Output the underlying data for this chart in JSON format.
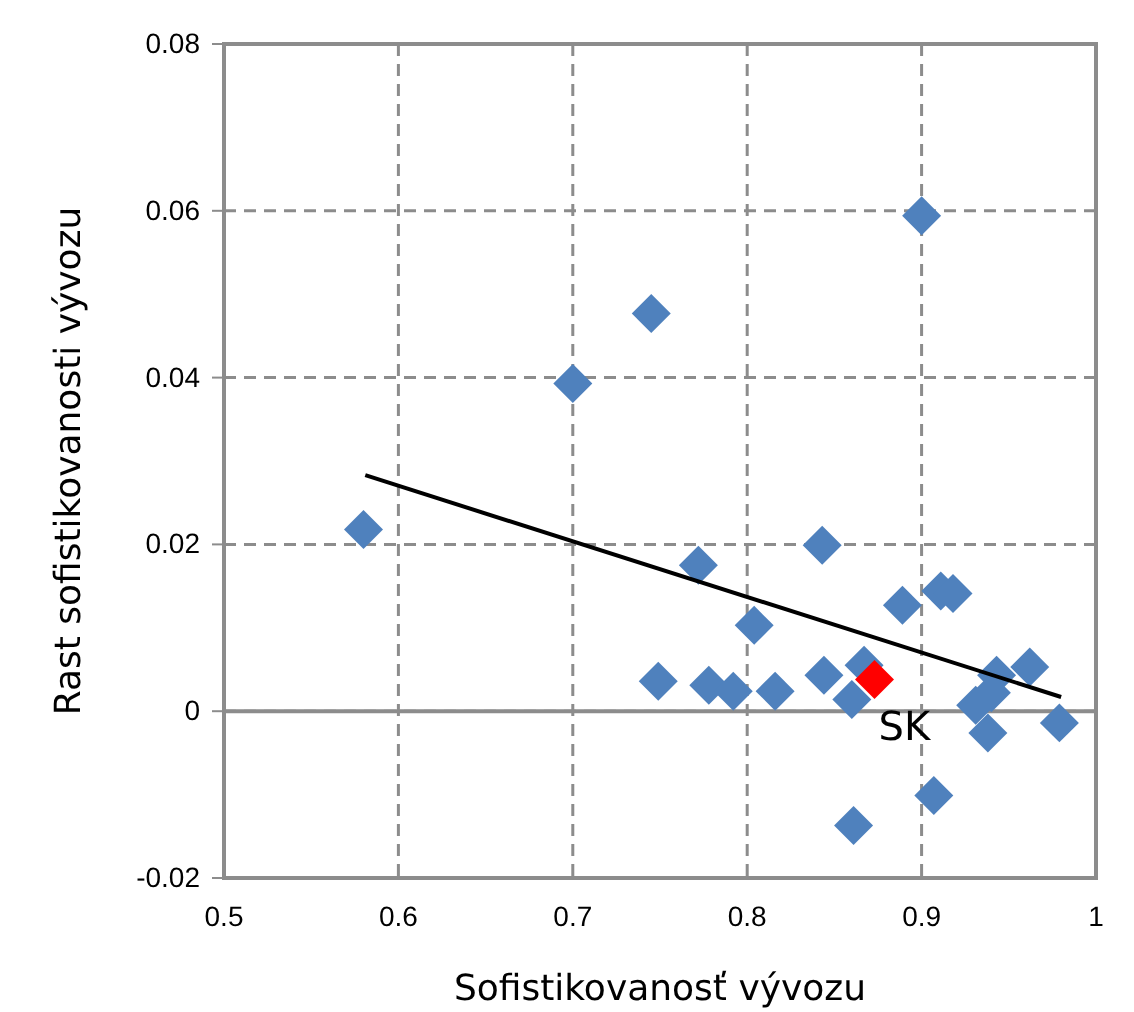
{
  "chart_data": {
    "type": "scatter",
    "xlabel": "Sofistikovanosť vývozu",
    "ylabel": "Rast sofistikovanosti vývozu",
    "xlim": [
      0.5,
      1
    ],
    "xticks": [
      0.5,
      0.6,
      0.7,
      0.8,
      0.9,
      {
        "value": 1,
        "label": "1"
      }
    ],
    "ylim": [
      -0.02,
      0.08
    ],
    "yticks": [
      -0.02,
      {
        "value": 0,
        "label": "0"
      },
      0.02,
      0.04,
      0.06,
      0.08
    ],
    "grid": true,
    "marker": "diamond",
    "annotations": [
      {
        "text": "SK",
        "x": 0.873,
        "y": 0.0038
      }
    ],
    "series": [
      {
        "color": "#4f81bd",
        "x": [
          0.58,
          0.7,
          0.745,
          0.9,
          0.772,
          0.843,
          0.804,
          0.749,
          0.778,
          0.792,
          0.816,
          0.844,
          0.867,
          0.86,
          0.873,
          0.861,
          0.889,
          0.911,
          0.918,
          0.907,
          0.931,
          0.943,
          0.94,
          0.938,
          0.962,
          0.979
        ],
        "values": [
          0.0218,
          0.0393,
          0.0477,
          0.0594,
          0.0175,
          0.0199,
          0.0103,
          0.0036,
          0.0031,
          0.0024,
          0.0024,
          0.0043,
          0.0055,
          0.0014,
          0.0038,
          -0.0137,
          0.0127,
          0.0144,
          0.0141,
          -0.0101,
          0.0007,
          0.0043,
          0.0022,
          -0.0026,
          0.0053,
          -0.0014
        ],
        "colors": [
          null,
          null,
          null,
          null,
          null,
          null,
          null,
          null,
          null,
          null,
          null,
          null,
          null,
          null,
          "#ff0000",
          null,
          null,
          null,
          null,
          null,
          null,
          null,
          null,
          null,
          null,
          null
        ]
      },
      {
        "type": "line",
        "marker": "none",
        "color": "#000000",
        "x": [
          0.581,
          0.98
        ],
        "values": [
          0.0283,
          0.0017
        ]
      }
    ]
  }
}
